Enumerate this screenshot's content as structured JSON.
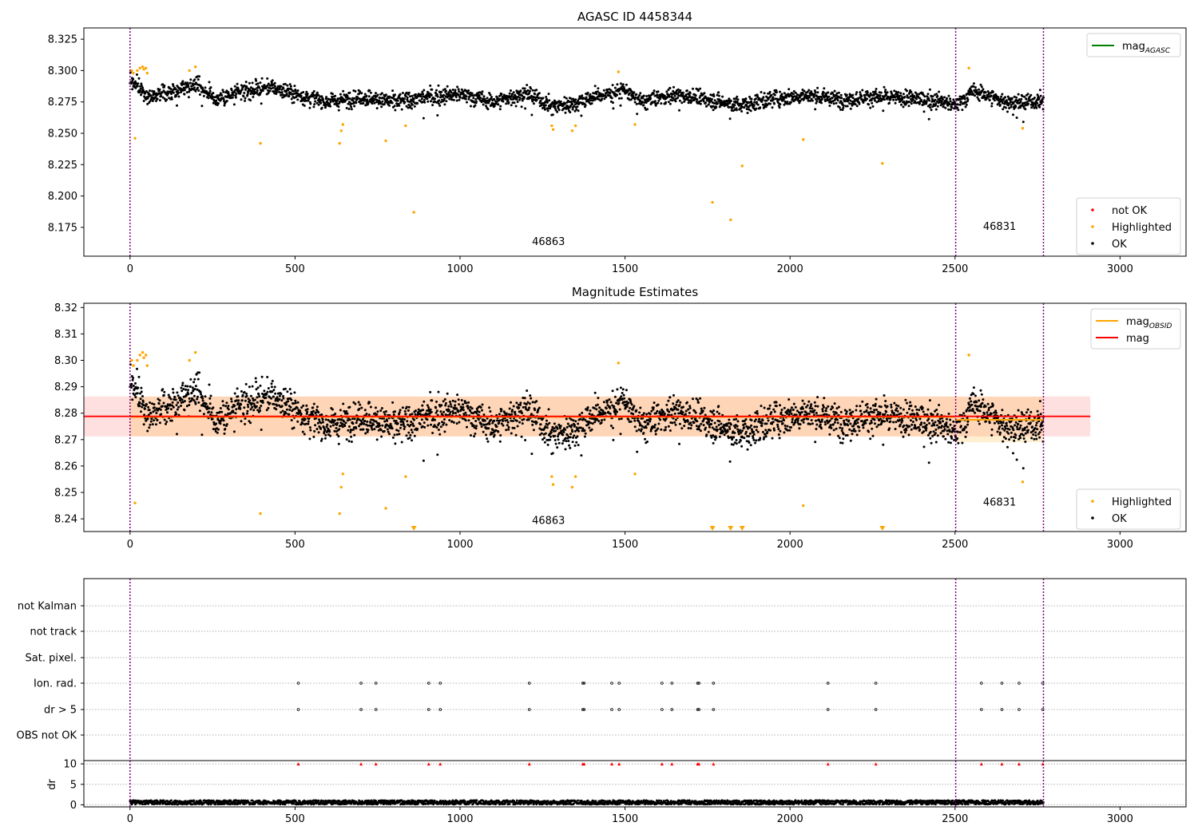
{
  "chart_data": [
    {
      "type": "scatter",
      "title": "AGASC ID 4458344",
      "xlim": [
        -140,
        3200
      ],
      "ylim": [
        8.152,
        8.334
      ],
      "xticks": [
        0,
        500,
        1000,
        1500,
        2000,
        2500,
        3000
      ],
      "yticks": [
        8.175,
        8.2,
        8.225,
        8.25,
        8.275,
        8.3,
        8.325
      ],
      "ytick_labels": [
        "8.175",
        "8.200",
        "8.225",
        "8.250",
        "8.275",
        "8.300",
        "8.325"
      ],
      "grid": false,
      "vlines": [
        0,
        2502,
        2768
      ],
      "obsid_labels": [
        {
          "text": "46863",
          "x": 1268,
          "y": 8.161
        },
        {
          "text": "46831",
          "x": 2635,
          "y": 8.173
        }
      ],
      "legend_upper": {
        "position": "upper-right",
        "entries": [
          {
            "label": "mag",
            "sub": "AGASC",
            "color": "#008000",
            "marker": "line"
          }
        ]
      },
      "legend_lower": {
        "position": "lower-right",
        "entries": [
          {
            "label": "not OK",
            "color": "#ff0000",
            "marker": "dot"
          },
          {
            "label": "Highlighted",
            "color": "#ffa500",
            "marker": "dot"
          },
          {
            "label": "OK",
            "color": "#000000",
            "marker": "dot"
          }
        ]
      },
      "ok_trend": {
        "x": [
          0,
          60,
          130,
          200,
          260,
          330,
          420,
          520,
          600,
          700,
          800,
          900,
          1000,
          1100,
          1200,
          1280,
          1350,
          1420,
          1500,
          1550,
          1650,
          1750,
          1850,
          1950,
          2050,
          2150,
          2250,
          2350,
          2450,
          2502,
          2560,
          2640,
          2700,
          2768
        ],
        "y": [
          8.292,
          8.28,
          8.283,
          8.29,
          8.277,
          8.282,
          8.287,
          8.28,
          8.275,
          8.279,
          8.275,
          8.279,
          8.281,
          8.275,
          8.282,
          8.272,
          8.274,
          8.28,
          8.284,
          8.275,
          8.281,
          8.277,
          8.272,
          8.278,
          8.28,
          8.277,
          8.279,
          8.278,
          8.276,
          8.272,
          8.284,
          8.276,
          8.274,
          8.277
        ]
      },
      "highlighted_points": [
        [
          5,
          8.3
        ],
        [
          10,
          8.298
        ],
        [
          15,
          8.246
        ],
        [
          22,
          8.3
        ],
        [
          30,
          8.302
        ],
        [
          38,
          8.303
        ],
        [
          42,
          8.301
        ],
        [
          48,
          8.302
        ],
        [
          52,
          8.298
        ],
        [
          180,
          8.3
        ],
        [
          198,
          8.303
        ],
        [
          395,
          8.242
        ],
        [
          635,
          8.242
        ],
        [
          640,
          8.252
        ],
        [
          645,
          8.257
        ],
        [
          775,
          8.244
        ],
        [
          835,
          8.256
        ],
        [
          860,
          8.187
        ],
        [
          1278,
          8.256
        ],
        [
          1282,
          8.253
        ],
        [
          1340,
          8.252
        ],
        [
          1350,
          8.256
        ],
        [
          1480,
          8.299
        ],
        [
          1530,
          8.257
        ],
        [
          1765,
          8.195
        ],
        [
          1820,
          8.181
        ],
        [
          1855,
          8.224
        ],
        [
          2040,
          8.245
        ],
        [
          2280,
          8.226
        ],
        [
          2542,
          8.302
        ],
        [
          2705,
          8.254
        ]
      ],
      "not_ok_points": [],
      "ok_point_count": 2770
    },
    {
      "type": "scatter",
      "title": "Magnitude Estimates",
      "xlim": [
        -140,
        3200
      ],
      "ylim": [
        8.2352,
        8.3216
      ],
      "xticks": [
        0,
        500,
        1000,
        1500,
        2000,
        2500,
        3000
      ],
      "yticks": [
        8.24,
        8.25,
        8.26,
        8.27,
        8.28,
        8.29,
        8.3,
        8.31,
        8.32
      ],
      "ytick_labels": [
        "8.24",
        "8.25",
        "8.26",
        "8.27",
        "8.28",
        "8.29",
        "8.30",
        "8.31",
        "8.32"
      ],
      "grid": false,
      "vlines": [
        0,
        2502,
        2768
      ],
      "obsid_labels": [
        {
          "text": "46863",
          "x": 1268,
          "y": 8.238
        },
        {
          "text": "46831",
          "x": 2635,
          "y": 8.245
        }
      ],
      "legend_upper": {
        "position": "upper-right",
        "entries": [
          {
            "label": "mag",
            "sub": "OBSID",
            "color": "#ffa500",
            "marker": "line"
          },
          {
            "label": "mag",
            "sub": "",
            "color": "#ff0000",
            "marker": "line"
          }
        ]
      },
      "legend_lower": {
        "position": "lower-right",
        "entries": [
          {
            "label": "Highlighted",
            "color": "#ffa500",
            "marker": "dot"
          },
          {
            "label": "OK",
            "color": "#000000",
            "marker": "dot"
          }
        ]
      },
      "mag_line": {
        "y": 8.2788,
        "x": [
          -140,
          2910
        ],
        "band": [
          8.2712,
          8.2863
        ],
        "color": "#ff0000"
      },
      "obsid_mag": [
        {
          "x": [
            0,
            2502
          ],
          "y": 8.2786,
          "band": [
            8.2712,
            8.2863
          ]
        },
        {
          "x": [
            2502,
            2768
          ],
          "y": 8.2775,
          "band": [
            8.269,
            8.2862
          ]
        }
      ],
      "ok_trend": {
        "x": [
          0,
          60,
          130,
          200,
          260,
          330,
          420,
          520,
          600,
          700,
          800,
          900,
          1000,
          1100,
          1200,
          1280,
          1350,
          1420,
          1500,
          1550,
          1650,
          1750,
          1850,
          1950,
          2050,
          2150,
          2250,
          2350,
          2450,
          2502,
          2560,
          2640,
          2700,
          2768
        ],
        "y": [
          8.292,
          8.28,
          8.283,
          8.29,
          8.277,
          8.282,
          8.287,
          8.28,
          8.275,
          8.279,
          8.275,
          8.279,
          8.281,
          8.275,
          8.282,
          8.272,
          8.274,
          8.28,
          8.284,
          8.275,
          8.281,
          8.277,
          8.272,
          8.278,
          8.28,
          8.277,
          8.279,
          8.278,
          8.276,
          8.272,
          8.284,
          8.276,
          8.274,
          8.277
        ]
      },
      "highlighted_points": [
        [
          5,
          8.3
        ],
        [
          10,
          8.298
        ],
        [
          15,
          8.246
        ],
        [
          22,
          8.3
        ],
        [
          30,
          8.302
        ],
        [
          38,
          8.303
        ],
        [
          42,
          8.301
        ],
        [
          48,
          8.302
        ],
        [
          52,
          8.298
        ],
        [
          180,
          8.3
        ],
        [
          198,
          8.303
        ],
        [
          395,
          8.242
        ],
        [
          635,
          8.242
        ],
        [
          640,
          8.252
        ],
        [
          645,
          8.257
        ],
        [
          775,
          8.244
        ],
        [
          835,
          8.256
        ],
        [
          1278,
          8.256
        ],
        [
          1282,
          8.253
        ],
        [
          1340,
          8.252
        ],
        [
          1350,
          8.256
        ],
        [
          1480,
          8.299
        ],
        [
          1530,
          8.257
        ],
        [
          2040,
          8.245
        ],
        [
          2542,
          8.302
        ],
        [
          2705,
          8.254
        ]
      ],
      "out_of_range_markers": [
        860,
        1765,
        1820,
        1855,
        2280
      ],
      "ok_point_count": 2770
    },
    {
      "type": "scatter",
      "title": "",
      "xlim": [
        -140,
        3200
      ],
      "xticks": [
        0,
        500,
        1000,
        1500,
        2000,
        2500,
        3000
      ],
      "vlines": [
        0,
        2502,
        2768
      ],
      "flag_rows": [
        "not Kalman",
        "not track",
        "Sat. pixel.",
        "Ion. rad.",
        "dr > 5",
        "OBS not OK"
      ],
      "flag_points": {
        "Ion. rad.": [
          510,
          700,
          745,
          905,
          940,
          1210,
          1372,
          1376,
          1460,
          1482,
          1612,
          1642,
          1720,
          1724,
          1768,
          2115,
          2260,
          2580,
          2642,
          2694,
          2766
        ],
        "dr > 5": [
          510,
          700,
          745,
          905,
          940,
          1210,
          1372,
          1376,
          1460,
          1482,
          1612,
          1642,
          1720,
          1724,
          1768,
          2115,
          2260,
          2580,
          2642,
          2694,
          2766
        ]
      },
      "dr": {
        "ylabel": "dr",
        "ylim": [
          -0.5,
          10.8
        ],
        "yticks": [
          0,
          5,
          10
        ],
        "spikes_at_10": [
          510,
          700,
          745,
          905,
          940,
          1210,
          1372,
          1376,
          1460,
          1482,
          1612,
          1642,
          1720,
          1724,
          1768,
          2115,
          2260,
          2580,
          2642,
          2694,
          2766
        ],
        "typical_range": [
          0.1,
          1.1
        ],
        "point_count": 2770
      }
    }
  ]
}
